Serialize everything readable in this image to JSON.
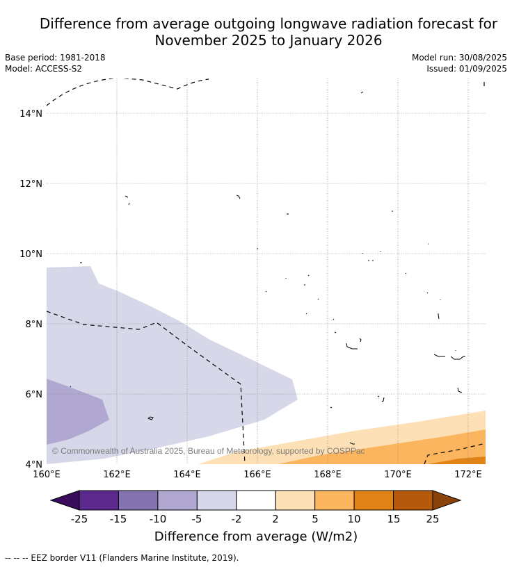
{
  "title_line1": "Difference from average outgoing longwave radiation forecast for",
  "title_line2": "November 2025 to January 2026",
  "base_period": "Base period: 1981-2018",
  "model": "Model: ACCESS-S2",
  "model_run": "Model run: 30/08/2025",
  "issued": "Issued: 01/09/2025",
  "copyright": "© Commonwealth of Australia 2025, Bureau of Meteorology, supported by COSPPac",
  "lat_labels": [
    "14°N",
    "12°N",
    "10°N",
    "8°N",
    "6°N",
    "4°N"
  ],
  "lon_labels": [
    "160°E",
    "162°E",
    "164°E",
    "166°E",
    "168°E",
    "170°E",
    "172°E"
  ],
  "colorbar": {
    "ticks": [
      "-25",
      "-15",
      "-10",
      "-5",
      "-2",
      "2",
      "5",
      "10",
      "15",
      "25"
    ],
    "colors": [
      "#5c2a8c",
      "#8573b0",
      "#b0a8d1",
      "#d7d7ea",
      "#ffffff",
      "#fde0b6",
      "#fbb55f",
      "#e08316",
      "#b55a0c"
    ],
    "under_color": "#3a0a5c",
    "over_color": "#8a430a",
    "label": "Difference from average (W/m2)"
  },
  "footer": "--  --  -- EEZ border V11 (Flanders Marine Institute, 2019)."
}
